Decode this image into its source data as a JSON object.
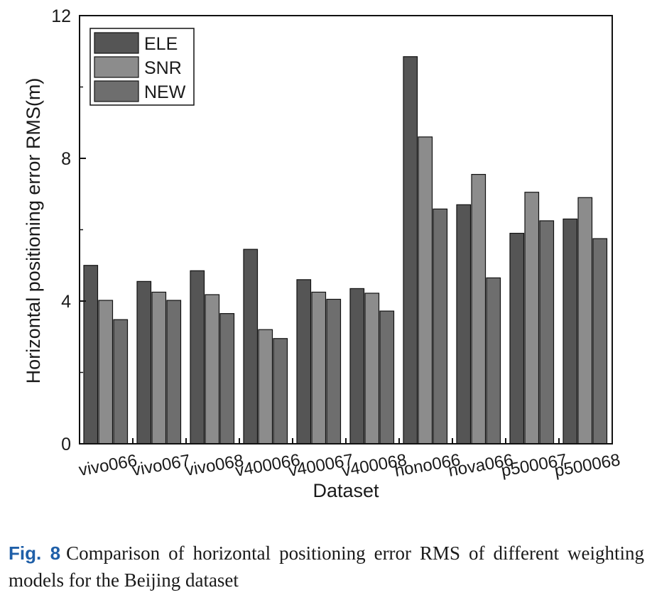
{
  "chart_data": {
    "type": "bar",
    "title": "",
    "xlabel": "Dataset",
    "ylabel": "Horizontal positioning error RMS(m)",
    "ylim": [
      0,
      12
    ],
    "yticks": [
      0,
      4,
      8,
      12
    ],
    "categories": [
      "vivo066",
      "vivo067",
      "vivo068",
      "v400066",
      "v400067",
      "v400068",
      "hono066",
      "nova066",
      "p500067",
      "p500068"
    ],
    "series": [
      {
        "name": "ELE",
        "color": "#555555",
        "values": [
          5.0,
          4.55,
          4.85,
          5.45,
          4.6,
          4.35,
          10.85,
          6.7,
          5.9,
          6.3
        ]
      },
      {
        "name": "SNR",
        "color": "#8c8c8c",
        "values": [
          4.02,
          4.25,
          4.18,
          3.2,
          4.25,
          4.22,
          8.6,
          7.55,
          7.05,
          6.9
        ]
      },
      {
        "name": "NEW",
        "color": "#6e6e6e",
        "values": [
          3.48,
          4.02,
          3.65,
          2.95,
          4.05,
          3.72,
          6.58,
          4.65,
          6.25,
          5.75
        ]
      }
    ],
    "legend_position": "top-left"
  },
  "caption": {
    "label": "Fig. 8",
    "text": "Comparison of horizontal positioning error RMS of different weighting models for the Beijing dataset"
  }
}
